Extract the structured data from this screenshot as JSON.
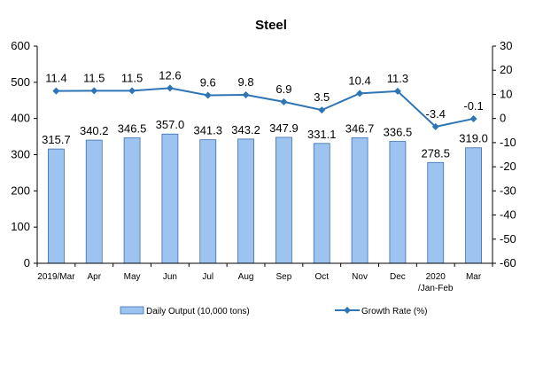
{
  "chart_data": {
    "type": "bar",
    "title": "Steel",
    "categories": [
      "2019/Mar",
      "Apr",
      "May",
      "Jun",
      "Jul",
      "Aug",
      "Sep",
      "Oct",
      "Nov",
      "Dec",
      "2020 /Jan-Feb",
      "Mar"
    ],
    "category_lines": [
      [
        "2019/Mar"
      ],
      [
        "Apr"
      ],
      [
        "May"
      ],
      [
        "Jun"
      ],
      [
        "Jul"
      ],
      [
        "Aug"
      ],
      [
        "Sep"
      ],
      [
        "Oct"
      ],
      [
        "Nov"
      ],
      [
        "Dec"
      ],
      [
        "2020",
        "/Jan-Feb"
      ],
      [
        "Mar"
      ]
    ],
    "series": [
      {
        "name": "Daily Output (10,000 tons)",
        "type": "bar",
        "axis": "left",
        "color": "#9DC3F0",
        "values": [
          315.7,
          340.2,
          346.5,
          357.0,
          341.3,
          343.2,
          347.9,
          331.1,
          346.7,
          336.5,
          278.5,
          319.0
        ],
        "labels": [
          "315.7",
          "340.2",
          "346.5",
          "357.0",
          "341.3",
          "343.2",
          "347.9",
          "331.1",
          "346.7",
          "336.5",
          "278.5",
          "319.0"
        ]
      },
      {
        "name": "Growth Rate (%)",
        "type": "line",
        "axis": "right",
        "color": "#2E75B6",
        "values": [
          11.4,
          11.5,
          11.5,
          12.6,
          9.6,
          9.8,
          6.9,
          3.5,
          10.4,
          11.3,
          -3.4,
          -0.1
        ],
        "labels": [
          "11.4",
          "11.5",
          "11.5",
          "12.6",
          "9.6",
          "9.8",
          "6.9",
          "3.5",
          "10.4",
          "11.3",
          "-3.4",
          "-0.1"
        ]
      }
    ],
    "y_left": {
      "min": 0,
      "max": 600,
      "step": 100,
      "ticks": [
        "0",
        "100",
        "200",
        "300",
        "400",
        "500",
        "600"
      ]
    },
    "y_right": {
      "min": -60,
      "max": 30,
      "step": 10,
      "ticks": [
        "-60",
        "-50",
        "-40",
        "-30",
        "-20",
        "-10",
        "0",
        "10",
        "20",
        "30"
      ]
    },
    "grid": false,
    "legend": "bottom"
  }
}
